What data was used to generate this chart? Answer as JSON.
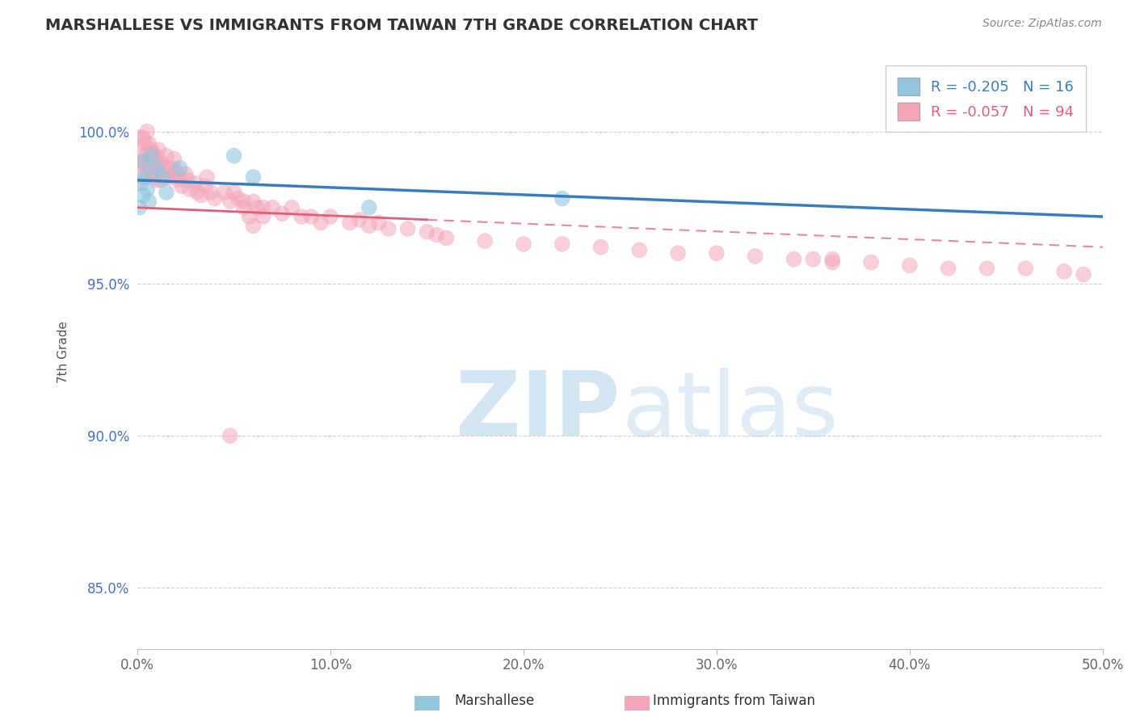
{
  "title": "MARSHALLESE VS IMMIGRANTS FROM TAIWAN 7TH GRADE CORRELATION CHART",
  "source": "Source: ZipAtlas.com",
  "ylabel": "7th Grade",
  "xlim": [
    0.0,
    0.5
  ],
  "ylim": [
    0.83,
    1.025
  ],
  "xticks": [
    0.0,
    0.1,
    0.2,
    0.3,
    0.4,
    0.5
  ],
  "xticklabels": [
    "0.0%",
    "10.0%",
    "20.0%",
    "30.0%",
    "40.0%",
    "50.0%"
  ],
  "yticks": [
    0.85,
    0.9,
    0.95,
    1.0
  ],
  "yticklabels": [
    "85.0%",
    "90.0%",
    "95.0%",
    "100.0%"
  ],
  "blue_R": -0.205,
  "blue_N": 16,
  "pink_R": -0.057,
  "pink_N": 94,
  "blue_color": "#92c5de",
  "pink_color": "#f4a6b8",
  "blue_line_color": "#3a7dbf",
  "pink_line_color": "#e0607a",
  "watermark_zip_color": "#c8dff0",
  "watermark_atlas_color": "#c8dff0",
  "blue_scatter_x": [
    0.001,
    0.002,
    0.003,
    0.003,
    0.004,
    0.005,
    0.006,
    0.007,
    0.01,
    0.013,
    0.015,
    0.022,
    0.05,
    0.06,
    0.12,
    0.22
  ],
  "blue_scatter_y": [
    0.975,
    0.983,
    0.979,
    0.99,
    0.985,
    0.981,
    0.977,
    0.992,
    0.988,
    0.985,
    0.98,
    0.988,
    0.992,
    0.985,
    0.975,
    0.978
  ],
  "pink_scatter_x": [
    0.001,
    0.001,
    0.002,
    0.002,
    0.003,
    0.003,
    0.004,
    0.004,
    0.005,
    0.005,
    0.006,
    0.006,
    0.007,
    0.007,
    0.008,
    0.008,
    0.009,
    0.009,
    0.01,
    0.01,
    0.011,
    0.011,
    0.012,
    0.012,
    0.013,
    0.014,
    0.015,
    0.015,
    0.016,
    0.017,
    0.018,
    0.019,
    0.02,
    0.021,
    0.022,
    0.023,
    0.025,
    0.026,
    0.027,
    0.03,
    0.031,
    0.033,
    0.035,
    0.036,
    0.038,
    0.04,
    0.045,
    0.048,
    0.05,
    0.055,
    0.06,
    0.065,
    0.07,
    0.075,
    0.08,
    0.085,
    0.09,
    0.095,
    0.1,
    0.11,
    0.115,
    0.12,
    0.125,
    0.13,
    0.14,
    0.15,
    0.155,
    0.16,
    0.18,
    0.2,
    0.22,
    0.24,
    0.26,
    0.28,
    0.3,
    0.32,
    0.34,
    0.36,
    0.38,
    0.4,
    0.42,
    0.44,
    0.46,
    0.48,
    0.49,
    0.35,
    0.36,
    0.048,
    0.052,
    0.055,
    0.058,
    0.06,
    0.062,
    0.065
  ],
  "pink_scatter_y": [
    0.998,
    0.99,
    0.993,
    0.985,
    0.998,
    0.99,
    0.996,
    0.988,
    1.0,
    0.993,
    0.996,
    0.988,
    0.994,
    0.987,
    0.993,
    0.986,
    0.992,
    0.985,
    0.991,
    0.984,
    0.994,
    0.987,
    0.99,
    0.984,
    0.988,
    0.986,
    0.992,
    0.985,
    0.988,
    0.985,
    0.988,
    0.991,
    0.987,
    0.984,
    0.985,
    0.982,
    0.986,
    0.984,
    0.981,
    0.983,
    0.98,
    0.979,
    0.982,
    0.985,
    0.98,
    0.978,
    0.98,
    0.977,
    0.98,
    0.977,
    0.977,
    0.975,
    0.975,
    0.973,
    0.975,
    0.972,
    0.972,
    0.97,
    0.972,
    0.97,
    0.971,
    0.969,
    0.97,
    0.968,
    0.968,
    0.967,
    0.966,
    0.965,
    0.964,
    0.963,
    0.963,
    0.962,
    0.961,
    0.96,
    0.96,
    0.959,
    0.958,
    0.958,
    0.957,
    0.956,
    0.955,
    0.955,
    0.955,
    0.954,
    0.953,
    0.958,
    0.957,
    0.9,
    0.978,
    0.975,
    0.972,
    0.969,
    0.975,
    0.972
  ]
}
